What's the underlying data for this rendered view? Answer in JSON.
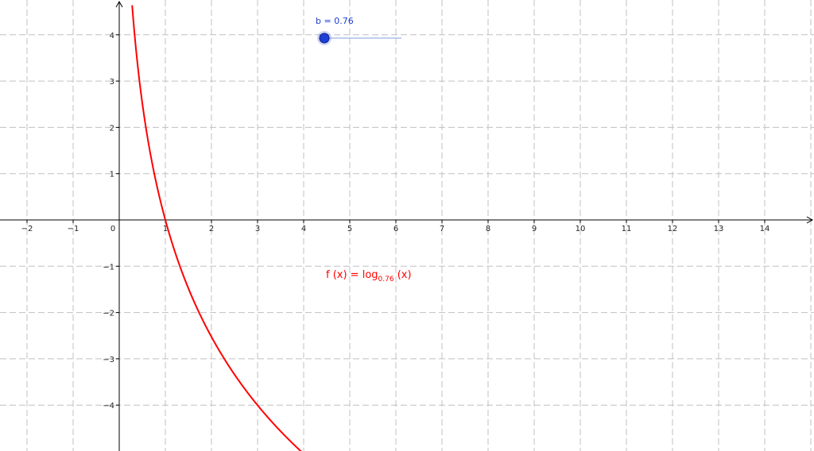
{
  "app": "GeoGebra graphics view",
  "colors": {
    "grid": "#c0c0c0",
    "axes": "#000000",
    "function": "#ff0000",
    "slider": "#1f3fd4",
    "slider_line": "#7f9fe0"
  },
  "slider": {
    "name": "b",
    "equals": " = ",
    "value": "0.76",
    "value_num": 0.76,
    "icon": "slider-point-icon"
  },
  "function_label": {
    "lhs": "f (x)  =  ",
    "log": "log",
    "base": "0.76",
    "arg": " (x)"
  },
  "axes": {
    "x_ticks": [
      "−2",
      "−1",
      "0",
      "1",
      "2",
      "3",
      "4",
      "5",
      "6",
      "7",
      "8",
      "9",
      "10",
      "11",
      "12",
      "13",
      "14"
    ],
    "y_ticks": [
      "4",
      "3",
      "2",
      "1",
      "−1",
      "−2",
      "−3",
      "−4"
    ]
  },
  "chart_data": {
    "type": "line",
    "title": "",
    "xlabel": "",
    "ylabel": "",
    "xlim": [
      -2.6,
      15.1
    ],
    "ylim": [
      -4.9,
      4.8
    ],
    "grid": true,
    "series": [
      {
        "name": "f (x)  =  log0.76 (x)",
        "expression": "log base 0.76 of x",
        "base": 0.76,
        "domain": [
          0.28,
          3.95
        ]
      }
    ]
  }
}
